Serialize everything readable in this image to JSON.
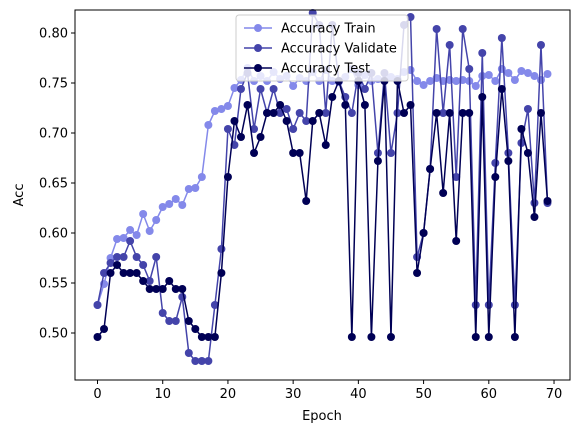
{
  "chart_data": {
    "type": "line",
    "title": "",
    "xlabel": "Epoch",
    "ylabel": "Acc",
    "ylabel_color": "#0000cc",
    "xlim": [
      -3.45,
      72.45
    ],
    "ylim": [
      0.453,
      0.823
    ],
    "xticks": [
      0,
      10,
      20,
      30,
      40,
      50,
      60,
      70
    ],
    "yticks": [
      0.5,
      0.55,
      0.6,
      0.65,
      0.7,
      0.75,
      0.8
    ],
    "ytick_labels": [
      "0.50",
      "0.55",
      "0.60",
      "0.65",
      "0.70",
      "0.75",
      "0.80"
    ],
    "grid": false,
    "legend_position": "top-center",
    "series": [
      {
        "name": "Accuracy Train",
        "color": "#8489ea",
        "x": [
          0,
          1,
          2,
          3,
          4,
          5,
          6,
          7,
          8,
          9,
          10,
          11,
          12,
          13,
          14,
          15,
          16,
          17,
          18,
          19,
          20,
          21,
          22,
          23,
          24,
          25,
          26,
          27,
          28,
          29,
          30,
          31,
          32,
          33,
          34,
          35,
          36,
          37,
          38,
          39,
          40,
          41,
          42,
          43,
          44,
          45,
          46,
          47,
          48,
          49,
          50,
          51,
          52,
          53,
          54,
          55,
          56,
          57,
          58,
          59,
          60,
          61,
          62,
          63,
          64,
          65,
          66,
          67,
          68,
          69
        ],
        "values": [
          0.528,
          0.549,
          0.575,
          0.594,
          0.595,
          0.603,
          0.598,
          0.619,
          0.602,
          0.613,
          0.626,
          0.629,
          0.634,
          0.628,
          0.644,
          0.645,
          0.656,
          0.708,
          0.722,
          0.724,
          0.727,
          0.745,
          0.753,
          0.765,
          0.752,
          0.757,
          0.752,
          0.761,
          0.754,
          0.757,
          0.747,
          0.755,
          0.752,
          0.761,
          0.752,
          0.763,
          0.752,
          0.751,
          0.756,
          0.764,
          0.748,
          0.758,
          0.752,
          0.754,
          0.753,
          0.756,
          0.754,
          0.761,
          0.763,
          0.752,
          0.748,
          0.752,
          0.755,
          0.752,
          0.753,
          0.752,
          0.753,
          0.752,
          0.747,
          0.757,
          0.758,
          0.752,
          0.764,
          0.76,
          0.753,
          0.762,
          0.76,
          0.757,
          0.753,
          0.759
        ]
      },
      {
        "name": "Accuracy Validate",
        "color": "#4444aa",
        "x": [
          0,
          1,
          2,
          3,
          4,
          5,
          6,
          7,
          8,
          9,
          10,
          11,
          12,
          13,
          14,
          15,
          16,
          17,
          18,
          19,
          20,
          21,
          22,
          23,
          24,
          25,
          26,
          27,
          28,
          29,
          30,
          31,
          32,
          33,
          34,
          35,
          36,
          37,
          38,
          39,
          40,
          41,
          42,
          43,
          44,
          45,
          46,
          47,
          48,
          49,
          50,
          51,
          52,
          53,
          54,
          55,
          56,
          57,
          58,
          59,
          60,
          61,
          62,
          63,
          64,
          65,
          66,
          67,
          68,
          69
        ],
        "values": [
          0.528,
          0.56,
          0.57,
          0.576,
          0.576,
          0.592,
          0.576,
          0.568,
          0.552,
          0.576,
          0.52,
          0.512,
          0.512,
          0.536,
          0.48,
          0.472,
          0.472,
          0.472,
          0.528,
          0.584,
          0.704,
          0.688,
          0.744,
          0.76,
          0.704,
          0.744,
          0.72,
          0.744,
          0.72,
          0.724,
          0.704,
          0.72,
          0.712,
          0.82,
          0.808,
          0.72,
          0.808,
          0.752,
          0.736,
          0.72,
          0.76,
          0.744,
          0.76,
          0.68,
          0.76,
          0.68,
          0.72,
          0.808,
          0.816,
          0.576,
          0.6,
          0.664,
          0.804,
          0.72,
          0.788,
          0.656,
          0.804,
          0.764,
          0.528,
          0.78,
          0.528,
          0.67,
          0.795,
          0.68,
          0.528,
          0.69,
          0.724,
          0.63,
          0.788,
          0.63
        ]
      },
      {
        "name": "Accuracy Test",
        "color": "#000055",
        "x": [
          0,
          1,
          2,
          3,
          4,
          5,
          6,
          7,
          8,
          9,
          10,
          11,
          12,
          13,
          14,
          15,
          16,
          17,
          18,
          19,
          20,
          21,
          22,
          23,
          24,
          25,
          26,
          27,
          28,
          29,
          30,
          31,
          32,
          33,
          34,
          35,
          36,
          37,
          38,
          39,
          40,
          41,
          42,
          43,
          44,
          45,
          46,
          47,
          48,
          49,
          50,
          51,
          52,
          53,
          54,
          55,
          56,
          57,
          58,
          59,
          60,
          61,
          62,
          63,
          64,
          65,
          66,
          67,
          68,
          69
        ],
        "values": [
          0.496,
          0.504,
          0.56,
          0.568,
          0.56,
          0.56,
          0.56,
          0.552,
          0.544,
          0.544,
          0.544,
          0.552,
          0.544,
          0.544,
          0.512,
          0.504,
          0.496,
          0.496,
          0.496,
          0.56,
          0.656,
          0.712,
          0.696,
          0.728,
          0.68,
          0.696,
          0.72,
          0.72,
          0.728,
          0.712,
          0.68,
          0.68,
          0.632,
          0.712,
          0.72,
          0.688,
          0.736,
          0.752,
          0.728,
          0.496,
          0.752,
          0.728,
          0.496,
          0.672,
          0.752,
          0.496,
          0.752,
          0.72,
          0.728,
          0.56,
          0.6,
          0.664,
          0.72,
          0.64,
          0.72,
          0.592,
          0.72,
          0.72,
          0.496,
          0.736,
          0.496,
          0.656,
          0.744,
          0.672,
          0.496,
          0.704,
          0.68,
          0.616,
          0.72,
          0.632
        ]
      }
    ]
  }
}
